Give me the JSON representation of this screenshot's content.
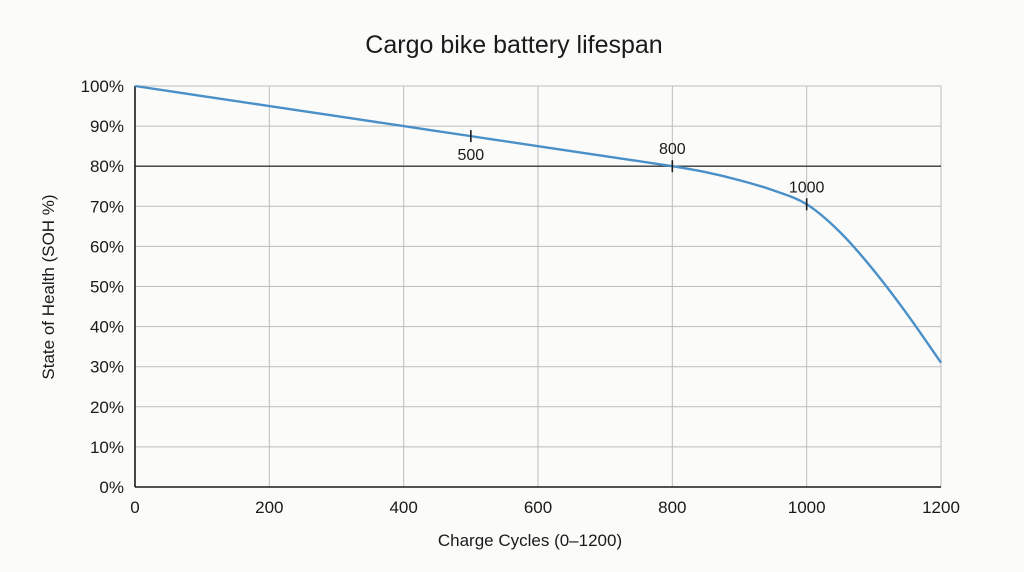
{
  "chart_data": {
    "type": "line",
    "title": "Cargo bike battery lifespan",
    "xlabel": "Charge Cycles (0–1200)",
    "ylabel": "State of Health (SOH %)",
    "xlim": [
      0,
      1200
    ],
    "ylim": [
      0,
      100
    ],
    "x_ticks": [
      0,
      200,
      400,
      600,
      800,
      1000,
      1200
    ],
    "x_tick_labels": [
      "0",
      "200",
      "400",
      "600",
      "800",
      "1000",
      "1200"
    ],
    "y_ticks": [
      0,
      10,
      20,
      30,
      40,
      50,
      60,
      70,
      80,
      90,
      100
    ],
    "y_tick_labels": [
      "0%",
      "10%",
      "20%",
      "30%",
      "40%",
      "50%",
      "60%",
      "70%",
      "80%",
      "90%",
      "100%"
    ],
    "grid": true,
    "reference_line": {
      "y": 80
    },
    "series": [
      {
        "color": "#4a90c8",
        "x": [
          0,
          100,
          200,
          300,
          400,
          500,
          600,
          700,
          800,
          850,
          900,
          950,
          1000,
          1050,
          1100,
          1150,
          1200
        ],
        "y": [
          100,
          97.5,
          95,
          92.5,
          90,
          87.5,
          85,
          82.5,
          80,
          78.5,
          76.5,
          74,
          70.5,
          63.5,
          54,
          43,
          31
        ]
      }
    ],
    "annotations": [
      {
        "x": 500,
        "y": 87.5,
        "label": "500",
        "label_pos": "below"
      },
      {
        "x": 800,
        "y": 80,
        "label": "800",
        "label_pos": "above"
      },
      {
        "x": 1000,
        "y": 70.5,
        "label": "1000",
        "label_pos": "above"
      }
    ]
  }
}
